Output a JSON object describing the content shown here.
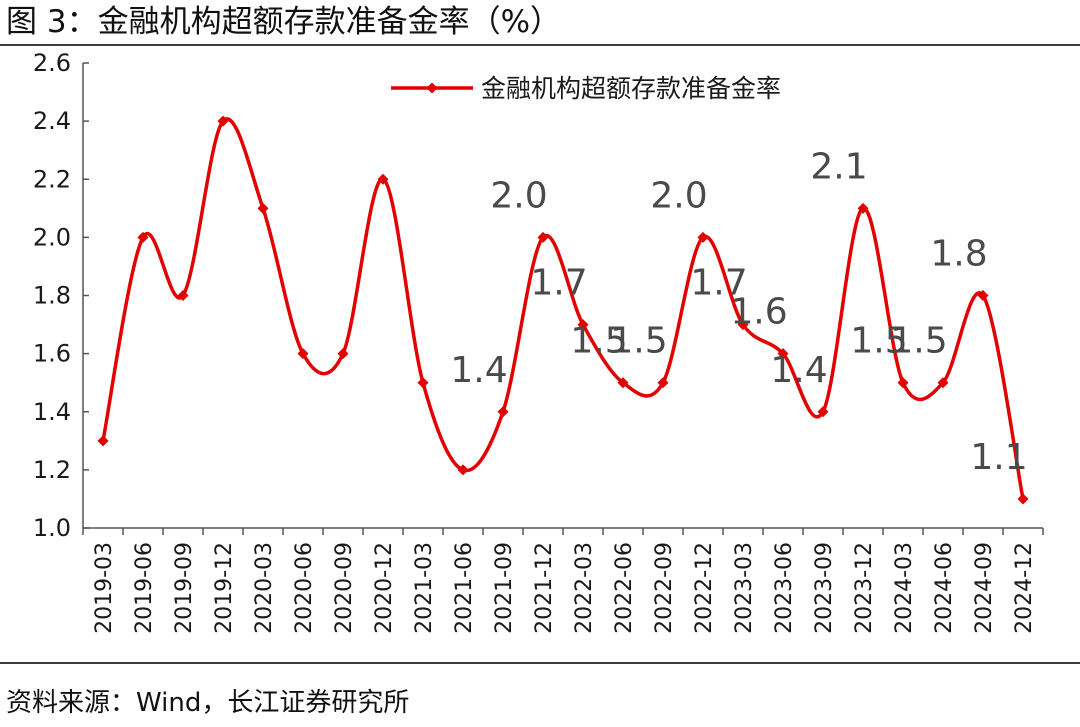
{
  "header": {
    "title": "图 3：金融机构超额存款准备金率（%）"
  },
  "footer": {
    "source": "资料来源：Wind，长江证券研究所"
  },
  "colors": {
    "series": "#e30000",
    "axis": "#555555",
    "label": "#4a4a4a",
    "rule": "#3c3c3c"
  },
  "chart_data": {
    "type": "line",
    "title": "金融机构超额存款准备金率（%）",
    "xlabel": "",
    "ylabel": "",
    "ylim": [
      1.0,
      2.6
    ],
    "yticks": [
      "1.0",
      "1.2",
      "1.4",
      "1.6",
      "1.8",
      "2.0",
      "2.2",
      "2.4",
      "2.6"
    ],
    "grid": false,
    "legend_position": "top-center",
    "categories": [
      "2019-03",
      "2019-06",
      "2019-09",
      "2019-12",
      "2020-03",
      "2020-06",
      "2020-09",
      "2020-12",
      "2021-03",
      "2021-06",
      "2021-09",
      "2021-12",
      "2022-03",
      "2022-06",
      "2022-09",
      "2022-12",
      "2023-03",
      "2023-06",
      "2023-09",
      "2023-12",
      "2024-03",
      "2024-06",
      "2024-09",
      "2024-12"
    ],
    "series": [
      {
        "name": "金融机构超额存款准备金率",
        "values": [
          1.3,
          2.0,
          1.8,
          2.4,
          2.1,
          1.6,
          1.6,
          2.2,
          1.5,
          1.2,
          1.4,
          2.0,
          1.7,
          1.5,
          1.5,
          2.0,
          1.7,
          1.6,
          1.4,
          2.1,
          1.5,
          1.5,
          1.8,
          1.1
        ],
        "smooth": true,
        "marker": "diamond"
      }
    ],
    "data_labels": [
      {
        "index": 10,
        "text": "1.4"
      },
      {
        "index": 11,
        "text": "2.0"
      },
      {
        "index": 12,
        "text": "1.7"
      },
      {
        "index": 13,
        "text": "1.5"
      },
      {
        "index": 14,
        "text": "1.5"
      },
      {
        "index": 15,
        "text": "2.0"
      },
      {
        "index": 16,
        "text": "1.7"
      },
      {
        "index": 17,
        "text": "1.6"
      },
      {
        "index": 18,
        "text": "1.4"
      },
      {
        "index": 19,
        "text": "2.1"
      },
      {
        "index": 20,
        "text": "1.5"
      },
      {
        "index": 21,
        "text": "1.5"
      },
      {
        "index": 22,
        "text": "1.8"
      },
      {
        "index": 23,
        "text": "1.1"
      }
    ]
  }
}
